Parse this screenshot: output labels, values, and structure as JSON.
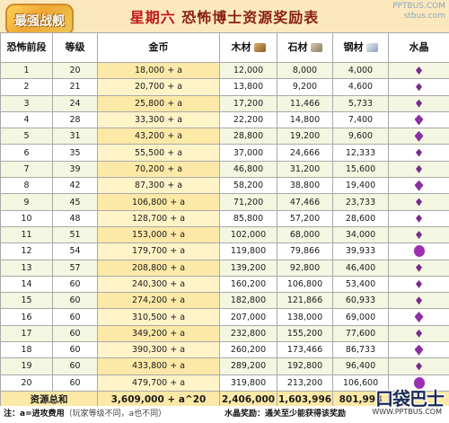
{
  "title": {
    "day": "星期六",
    "text": "恐怖博士资源奖励表"
  },
  "logo_text": "最强战舰",
  "watermark_top": [
    "PPTBUS.COM",
    "stbus.com"
  ],
  "headers": [
    "恐怖前段",
    "等级",
    "金币",
    "木材",
    "石材",
    "钢材",
    "水晶"
  ],
  "rows": [
    {
      "stage": "1",
      "level": "20",
      "gold": "18,000 + a",
      "wood": "12,000",
      "stone": "8,000",
      "steel": "4,000",
      "crystal": "small"
    },
    {
      "stage": "2",
      "level": "21",
      "gold": "20,700 + a",
      "wood": "13,800",
      "stone": "9,200",
      "steel": "4,600",
      "crystal": "small"
    },
    {
      "stage": "3",
      "level": "24",
      "gold": "25,800 + a",
      "wood": "17,200",
      "stone": "11,466",
      "steel": "5,733",
      "crystal": "small"
    },
    {
      "stage": "4",
      "level": "28",
      "gold": "33,300 + a",
      "wood": "22,200",
      "stone": "14,800",
      "steel": "7,400",
      "crystal": "big"
    },
    {
      "stage": "5",
      "level": "31",
      "gold": "43,200 + a",
      "wood": "28,800",
      "stone": "19,200",
      "steel": "9,600",
      "crystal": "big"
    },
    {
      "stage": "6",
      "level": "35",
      "gold": "55,500 + a",
      "wood": "37,000",
      "stone": "24,666",
      "steel": "12,333",
      "crystal": "small"
    },
    {
      "stage": "7",
      "level": "39",
      "gold": "70,200 + a",
      "wood": "46,800",
      "stone": "31,200",
      "steel": "15,600",
      "crystal": "small"
    },
    {
      "stage": "8",
      "level": "42",
      "gold": "87,300 + a",
      "wood": "58,200",
      "stone": "38,800",
      "steel": "19,400",
      "crystal": "big"
    },
    {
      "stage": "9",
      "level": "45",
      "gold": "106,800 + a",
      "wood": "71,200",
      "stone": "47,466",
      "steel": "23,733",
      "crystal": "small"
    },
    {
      "stage": "10",
      "level": "48",
      "gold": "128,700 + a",
      "wood": "85,800",
      "stone": "57,200",
      "steel": "28,600",
      "crystal": "small"
    },
    {
      "stage": "11",
      "level": "51",
      "gold": "153,000 + a",
      "wood": "102,000",
      "stone": "68,000",
      "steel": "34,000",
      "crystal": "small"
    },
    {
      "stage": "12",
      "level": "54",
      "gold": "179,700 + a",
      "wood": "119,800",
      "stone": "79,866",
      "steel": "39,933",
      "crystal": "xl"
    },
    {
      "stage": "13",
      "level": "57",
      "gold": "208,800 + a",
      "wood": "139,200",
      "stone": "92,800",
      "steel": "46,400",
      "crystal": "small"
    },
    {
      "stage": "14",
      "level": "60",
      "gold": "240,300 + a",
      "wood": "160,200",
      "stone": "106,800",
      "steel": "53,400",
      "crystal": "small"
    },
    {
      "stage": "15",
      "level": "60",
      "gold": "274,200 + a",
      "wood": "182,800",
      "stone": "121,866",
      "steel": "60,933",
      "crystal": "small"
    },
    {
      "stage": "16",
      "level": "60",
      "gold": "310,500 + a",
      "wood": "207,000",
      "stone": "138,000",
      "steel": "69,000",
      "crystal": "big"
    },
    {
      "stage": "17",
      "level": "60",
      "gold": "349,200 + a",
      "wood": "232,800",
      "stone": "155,200",
      "steel": "77,600",
      "crystal": "small"
    },
    {
      "stage": "18",
      "level": "60",
      "gold": "390,300 + a",
      "wood": "260,200",
      "stone": "173,466",
      "steel": "86,733",
      "crystal": "big"
    },
    {
      "stage": "19",
      "level": "60",
      "gold": "433,800 + a",
      "wood": "289,200",
      "stone": "192,800",
      "steel": "96,400",
      "crystal": "small"
    },
    {
      "stage": "20",
      "level": "60",
      "gold": "479,700 + a",
      "wood": "319,800",
      "stone": "213,200",
      "steel": "106,600",
      "crystal": "xl"
    }
  ],
  "totals": {
    "label": "资源总和",
    "gold": "3,609,000 + a^20",
    "wood": "2,406,000",
    "stone": "1,603,996",
    "steel": "801,998"
  },
  "footer": {
    "note_a_bold": "注：a=进攻费用",
    "note_a_light": "（玩家等级不同，a也不同）",
    "note_b": "水晶奖励：通关至少能获得该奖励"
  },
  "brand": {
    "name": "口袋巴士",
    "url": "WWW.PPTBUS.COM"
  },
  "colors": {
    "title": "#8a1f11",
    "title_day": "#c0161b",
    "gold_column": "#fde9a7",
    "row_alt": "#f3f7e1",
    "crystal": "#7a2a8c"
  }
}
